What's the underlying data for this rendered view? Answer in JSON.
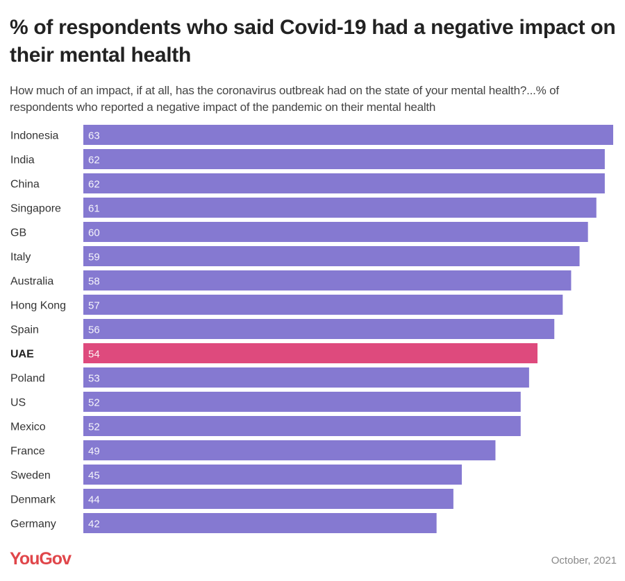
{
  "header": {
    "title": "% of respondents who said Covid-19 had a negative impact on their mental health",
    "subtitle": "How much of an impact, if at all, has the coronavirus outbreak had on the state of your mental health?...% of respondents who reported a negative impact of the pandemic on their mental health"
  },
  "footer": {
    "logo": "YouGov",
    "date": "October, 2021"
  },
  "colors": {
    "bar": "#8579d1",
    "highlight": "#de4a7d",
    "logo": "#e0464a"
  },
  "chart_data": {
    "type": "bar",
    "orientation": "horizontal",
    "title": "% of respondents who said Covid-19 had a negative impact on their mental health",
    "subtitle": "How much of an impact, if at all, has the coronavirus outbreak had on the state of your mental health?...% of respondents who reported a negative impact of the pandemic on their mental health",
    "xlabel": "",
    "ylabel": "",
    "xlim": [
      0,
      63
    ],
    "grid": false,
    "categories": [
      "Indonesia",
      "India",
      "China",
      "Singapore",
      "GB",
      "Italy",
      "Australia",
      "Hong Kong",
      "Spain",
      "UAE",
      "Poland",
      "US",
      "Mexico",
      "France",
      "Sweden",
      "Denmark",
      "Germany"
    ],
    "values": [
      63,
      62,
      62,
      61,
      60,
      59,
      58,
      57,
      56,
      54,
      53,
      52,
      52,
      49,
      45,
      44,
      42
    ],
    "highlighted": [
      "UAE"
    ],
    "data_labels": true,
    "source": "YouGov",
    "date": "October, 2021"
  }
}
